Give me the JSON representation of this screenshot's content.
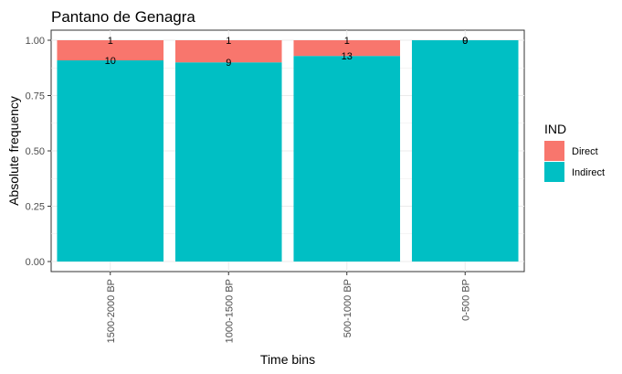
{
  "chart_data": {
    "type": "bar",
    "stacked": true,
    "title": "Pantano de Genagra",
    "xlabel": "Time bins",
    "ylabel": "Absolute frequency",
    "categories": [
      "1500-2000 BP",
      "1000-1500 BP",
      "500-1000 BP",
      "0-500 BP"
    ],
    "ylim": [
      0,
      1
    ],
    "yticks": [
      "0.00",
      "0.25",
      "0.50",
      "0.75",
      "1.00"
    ],
    "grid": true,
    "legend": {
      "title": "IND",
      "position": "right"
    },
    "series": [
      {
        "name": "Indirect",
        "color": "#00BFC4",
        "values": [
          0.909,
          0.9,
          0.929,
          1.0
        ],
        "counts": [
          "10",
          "9",
          "13",
          "9"
        ]
      },
      {
        "name": "Direct",
        "color": "#F8766D",
        "values": [
          0.091,
          0.1,
          0.071,
          0.0
        ],
        "counts": [
          "1",
          "1",
          "1",
          "0"
        ]
      }
    ]
  }
}
